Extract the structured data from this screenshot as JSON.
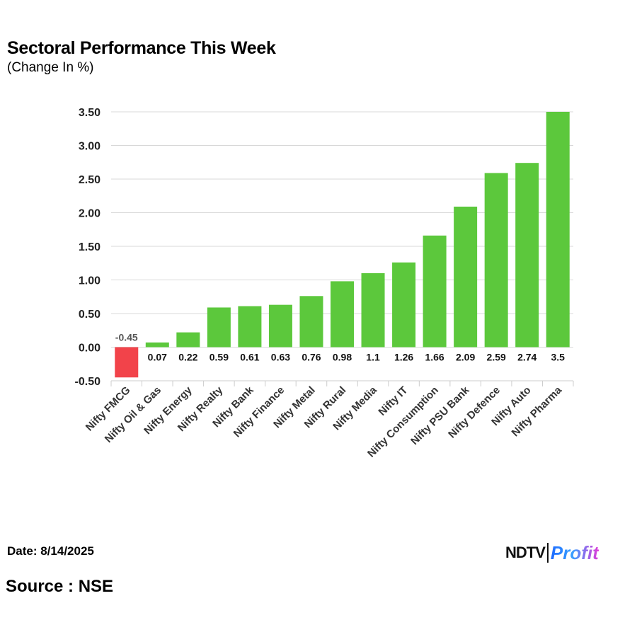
{
  "header": {
    "title": "Sectoral Performance This Week",
    "subtitle": "(Change In %)"
  },
  "footer": {
    "date": "Date: 8/14/2025",
    "source": "Source : NSE",
    "logo_text": "NDTV Profit"
  },
  "chart_data": {
    "type": "bar",
    "title": "Sectoral Performance This Week",
    "subtitle": "(Change In %)",
    "categories": [
      "Nifty FMCG",
      "Nifty Oil & Gas",
      "Nifty Energy",
      "Nifty Realty",
      "Nifty Bank",
      "Nifty Finance",
      "Nifty Metal",
      "Nifty Rural",
      "Nifty Media",
      "Nifty IT",
      "Nifty Consumption",
      "Nifty PSU Bank",
      "Nifty Defence",
      "Nifty Auto",
      "Nifty Pharma"
    ],
    "values": [
      -0.45,
      0.07,
      0.22,
      0.59,
      0.61,
      0.63,
      0.76,
      0.98,
      1.1,
      1.26,
      1.66,
      2.09,
      2.59,
      2.74,
      3.5
    ],
    "data_labels": [
      "-0.45",
      "0.07",
      "0.22",
      "0.59",
      "0.61",
      "0.63",
      "0.76",
      "0.98",
      "1.1",
      "1.26",
      "1.66",
      "2.09",
      "2.59",
      "2.74",
      "3.5"
    ],
    "yticks": [
      "-0.50",
      "0.00",
      "0.50",
      "1.00",
      "1.50",
      "2.00",
      "2.50",
      "3.00",
      "3.50"
    ],
    "ylim": [
      -0.5,
      3.5
    ],
    "grid": true,
    "legend": "none",
    "colors": {
      "positive": "#5cc83c",
      "negative": "#f2434a"
    }
  }
}
